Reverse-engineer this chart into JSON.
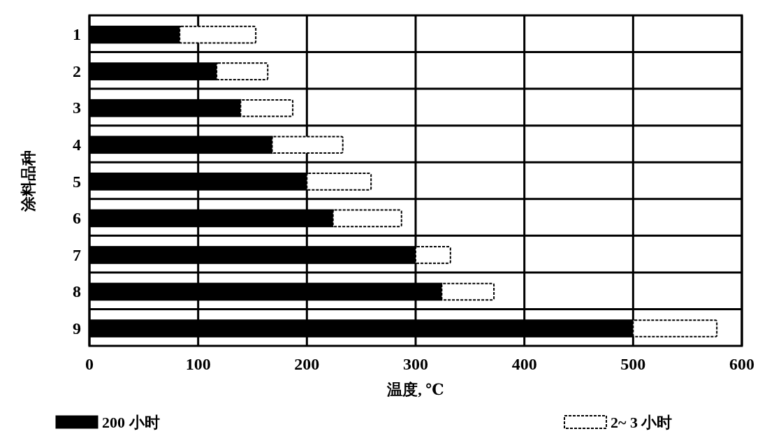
{
  "chart_data": {
    "type": "bar",
    "orientation": "horizontal",
    "stacked": true,
    "xlabel": "温度, ℃",
    "ylabel": "涂料品种",
    "categories": [
      "1",
      "2",
      "3",
      "4",
      "5",
      "6",
      "7",
      "8",
      "9"
    ],
    "series": [
      {
        "name": "200 小时",
        "color": "#000000",
        "values": [
          83,
          117,
          139,
          168,
          200,
          224,
          300,
          324,
          500
        ]
      },
      {
        "name": "2~ 3 小时",
        "color": "#ffffff",
        "line_style": "dashed",
        "values": [
          70,
          47,
          48,
          65,
          59,
          63,
          32,
          48,
          77
        ]
      }
    ],
    "xlim": [
      0,
      600
    ],
    "xticks": [
      0,
      100,
      200,
      300,
      400,
      500,
      600
    ],
    "grid": true,
    "legend": "bottom"
  }
}
